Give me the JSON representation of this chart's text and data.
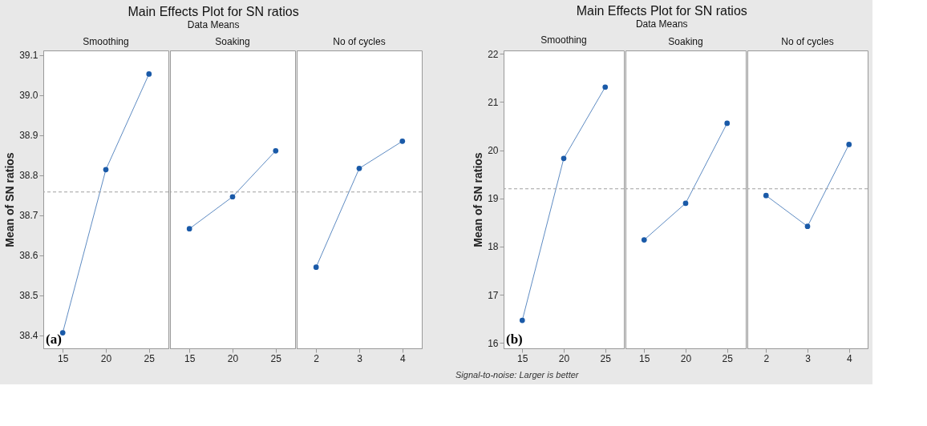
{
  "chart_data": [
    {
      "type": "line",
      "xlabel": "Smoothing",
      "ylabel": "Mean of SN ratios",
      "categories": [
        "15",
        "20",
        "25"
      ],
      "series": [
        {
          "color": "#1a5aa8",
          "values": [
            38.406,
            38.814,
            39.053
          ]
        }
      ],
      "ylim": [
        38.367,
        39.112
      ],
      "yticks": [
        38.4,
        38.5,
        38.6,
        38.7,
        38.8,
        38.9,
        {
          "value": 39,
          "label": "39.0"
        },
        39.1
      ],
      "marker": "circle",
      "line_style": "solid",
      "grid": false,
      "ref_lines": [
        {
          "axis": "y",
          "value": 38.758,
          "color": "#a0a0a0",
          "line_style": "dashed"
        }
      ],
      "annotations": [
        "(a)"
      ]
    },
    {
      "type": "line",
      "title": "Main Effects Plot for SN ratios",
      "subtitle": "Data Means",
      "xlabel": "Soaking",
      "categories": [
        "15",
        "20",
        "25"
      ],
      "series": [
        {
          "color": "#1a5aa8",
          "values": [
            38.666,
            38.746,
            38.861
          ]
        }
      ],
      "ylim": [
        38.367,
        39.112
      ],
      "tick_labels": "x",
      "marker": "circle",
      "line_style": "solid",
      "grid": false,
      "ref_lines": [
        {
          "axis": "y",
          "value": 38.758,
          "color": "#a0a0a0",
          "line_style": "dashed"
        }
      ]
    },
    {
      "type": "line",
      "xlabel": "No of cycles",
      "categories": [
        "2",
        "3",
        "4"
      ],
      "series": [
        {
          "color": "#1a5aa8",
          "values": [
            38.57,
            38.817,
            38.885
          ]
        }
      ],
      "ylim": [
        38.367,
        39.112
      ],
      "tick_labels": "x",
      "marker": "circle",
      "line_style": "solid",
      "grid": false,
      "ref_lines": [
        {
          "axis": "y",
          "value": 38.758,
          "color": "#a0a0a0",
          "line_style": "dashed"
        }
      ]
    },
    {
      "type": "line",
      "xlabel": "Smoothing",
      "ylabel": "Mean of SN ratios",
      "categories": [
        "15",
        "20",
        "25"
      ],
      "series": [
        {
          "color": "#1a5aa8",
          "values": [
            16.47,
            19.83,
            21.31
          ]
        }
      ],
      "ylim": [
        15.89,
        22.07
      ],
      "yticks": [
        16,
        17,
        18,
        19,
        20,
        21,
        22
      ],
      "marker": "circle",
      "line_style": "solid",
      "grid": false,
      "ref_lines": [
        {
          "axis": "y",
          "value": 19.2,
          "color": "#a0a0a0",
          "line_style": "dashed"
        }
      ],
      "annotations": [
        "(b)",
        "Signal-to-noise: Larger is better"
      ]
    },
    {
      "type": "line",
      "title": "Main Effects Plot for SN ratios",
      "subtitle": "Data Means",
      "xlabel": "Soaking",
      "categories": [
        "15",
        "20",
        "25"
      ],
      "series": [
        {
          "color": "#1a5aa8",
          "values": [
            18.14,
            18.9,
            20.56
          ]
        }
      ],
      "ylim": [
        15.89,
        22.07
      ],
      "tick_labels": "x",
      "marker": "circle",
      "line_style": "solid",
      "grid": false,
      "ref_lines": [
        {
          "axis": "y",
          "value": 19.2,
          "color": "#a0a0a0",
          "line_style": "dashed"
        }
      ]
    },
    {
      "type": "line",
      "xlabel": "No of cycles",
      "categories": [
        "2",
        "3",
        "4"
      ],
      "series": [
        {
          "color": "#1a5aa8",
          "values": [
            19.06,
            18.42,
            20.12
          ]
        }
      ],
      "ylim": [
        15.89,
        22.07
      ],
      "tick_labels": "x",
      "marker": "circle",
      "line_style": "solid",
      "grid": false,
      "ref_lines": [
        {
          "axis": "y",
          "value": 19.2,
          "color": "#a0a0a0",
          "line_style": "dashed"
        }
      ]
    }
  ]
}
